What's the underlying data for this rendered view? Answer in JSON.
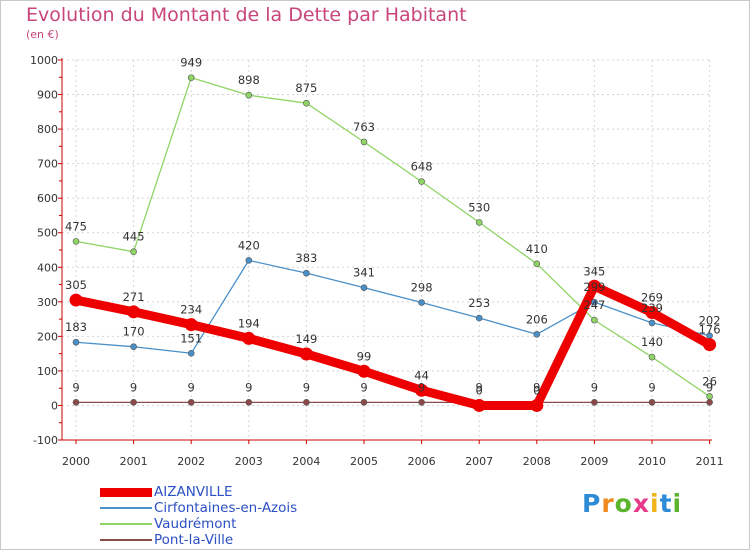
{
  "chart_data": {
    "type": "line",
    "title": "Evolution du Montant de la Dette par Habitant",
    "subtitle": "(en €)",
    "xlabel": "",
    "ylabel": "",
    "x": [
      "2000",
      "2001",
      "2002",
      "2003",
      "2004",
      "2005",
      "2006",
      "2007",
      "2008",
      "2009",
      "2010",
      "2011"
    ],
    "ylim": [
      -100,
      1000
    ],
    "yticks": [
      "-100",
      "0",
      "100",
      "200",
      "300",
      "400",
      "500",
      "600",
      "700",
      "800",
      "900",
      "1000"
    ],
    "series": [
      {
        "name": "AIZANVILLE",
        "color": "#ee0000",
        "values": [
          305,
          271,
          234,
          194,
          149,
          99,
          44,
          0,
          0,
          345,
          269,
          176
        ],
        "labels": [
          "305",
          "271",
          "234",
          "194",
          "149",
          "99",
          "44",
          "0",
          "0",
          "345",
          "269",
          "176"
        ]
      },
      {
        "name": "Cirfontaines-en-Azois",
        "color": "#4a90c8",
        "values": [
          183,
          170,
          151,
          420,
          383,
          341,
          298,
          253,
          206,
          299,
          239,
          202
        ],
        "labels": [
          "183",
          "170",
          "151",
          "420",
          "383",
          "341",
          "298",
          "253",
          "206",
          "299",
          "239",
          "202"
        ]
      },
      {
        "name": "Vaudrémont",
        "color": "#8fd465",
        "values": [
          475,
          445,
          949,
          898,
          875,
          763,
          648,
          530,
          410,
          247,
          140,
          26
        ],
        "labels": [
          "475",
          "445",
          "949",
          "898",
          "875",
          "763",
          "648",
          "530",
          "410",
          "247",
          "140",
          "26"
        ]
      },
      {
        "name": "Pont-la-Ville",
        "color": "#8b4a4a",
        "values": [
          9,
          9,
          9,
          9,
          9,
          9,
          9,
          9,
          9,
          9,
          9,
          9
        ],
        "labels": [
          "9",
          "9",
          "9",
          "9",
          "9",
          "9",
          "9",
          "9",
          "9",
          "9",
          "9",
          "9"
        ]
      }
    ]
  },
  "logo": {
    "letters": [
      "P",
      "r",
      "o",
      "x",
      "i",
      "t",
      "i"
    ],
    "colors": [
      "#2e8bd6",
      "#f08a1c",
      "#5ab52d",
      "#e83a8a",
      "#f0b419",
      "#2e8bd6",
      "#5ab52d"
    ]
  }
}
